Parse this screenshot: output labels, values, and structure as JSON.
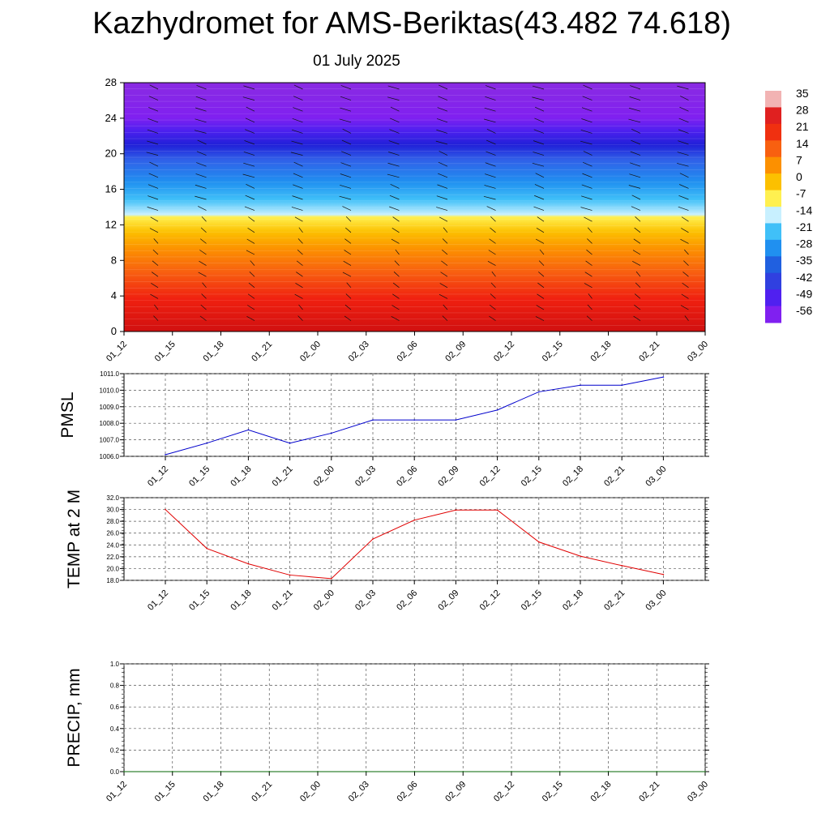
{
  "header": {
    "title": "Kazhydromet for AMS-Beriktas(43.482 74.618)",
    "subtitle": "01 July 2025"
  },
  "colorbar": {
    "labels": [
      "35",
      "28",
      "21",
      "14",
      "7",
      "0",
      "-7",
      "-14",
      "-21",
      "-28",
      "-35",
      "-42",
      "-49",
      "-56"
    ],
    "colors_top_to_bottom": [
      "#f2b3b3",
      "#e02020",
      "#f03010",
      "#f86010",
      "#fc9000",
      "#fcc000",
      "#fff050",
      "#c8f0ff",
      "#40c0f8",
      "#2090f0",
      "#2060e0",
      "#3040e0",
      "#5020f0",
      "#8020f0"
    ]
  },
  "chart_data": [
    {
      "type": "heatmap",
      "title": "",
      "y_ticks": [
        "0",
        "4",
        "8",
        "12",
        "16",
        "20",
        "24",
        "28"
      ],
      "ylim": [
        0,
        28
      ],
      "x_ticks": [
        "01_12",
        "01_15",
        "01_18",
        "01_21",
        "02_00",
        "02_03",
        "02_06",
        "02_09",
        "02_12",
        "02_15",
        "02_18",
        "02_21",
        "03_00"
      ],
      "colorbar_range": [
        -56,
        35
      ],
      "overlay": "wind barbs",
      "grid": false
    },
    {
      "type": "line",
      "ylabel": "PMSL",
      "y_ticks": [
        "1006.0",
        "1007.0",
        "1008.0",
        "1009.0",
        "1010.0",
        "1011.0"
      ],
      "ylim": [
        1006,
        1011
      ],
      "categories": [
        "01_12",
        "01_15",
        "01_18",
        "01_21",
        "02_00",
        "02_03",
        "02_06",
        "02_09",
        "02_12",
        "02_15",
        "02_18",
        "02_21",
        "03_00"
      ],
      "values": [
        1006.1,
        1006.8,
        1007.6,
        1006.8,
        1007.4,
        1008.2,
        1008.2,
        1008.2,
        1008.8,
        1009.9,
        1010.3,
        1010.3,
        1010.8
      ],
      "color": "#0000cc",
      "grid": true
    },
    {
      "type": "line",
      "ylabel": "TEMP at 2 M",
      "y_ticks": [
        "18.0",
        "20.0",
        "22.0",
        "24.0",
        "26.0",
        "28.0",
        "30.0",
        "32.0"
      ],
      "ylim": [
        18,
        32
      ],
      "categories": [
        "01_12",
        "01_15",
        "01_18",
        "01_21",
        "02_00",
        "02_03",
        "02_06",
        "02_09",
        "02_12",
        "02_15",
        "02_18",
        "02_21",
        "03_00"
      ],
      "values": [
        30.0,
        23.4,
        20.8,
        18.9,
        18.3,
        25.0,
        28.2,
        29.9,
        29.9,
        24.5,
        22.1,
        20.5,
        19.0
      ],
      "color": "#e00000",
      "grid": true
    },
    {
      "type": "line",
      "ylabel": "PRECIP, mm",
      "y_ticks": [
        "0.0",
        "0.2",
        "0.4",
        "0.6",
        "0.8",
        "1.0"
      ],
      "ylim": [
        0,
        1
      ],
      "categories": [
        "01_12",
        "01_15",
        "01_18",
        "01_21",
        "02_00",
        "02_03",
        "02_06",
        "02_09",
        "02_12",
        "02_15",
        "02_18",
        "02_21",
        "03_00"
      ],
      "values": [
        0,
        0,
        0,
        0,
        0,
        0,
        0,
        0,
        0,
        0,
        0,
        0,
        0
      ],
      "color": "#006400",
      "grid": true
    }
  ]
}
